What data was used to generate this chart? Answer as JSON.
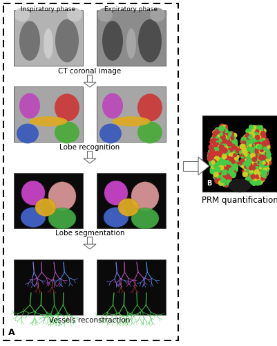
{
  "fig_width": 4.02,
  "fig_height": 5.0,
  "dpi": 100,
  "background_color": "#ffffff",
  "labels": {
    "insp": "Inspiratory phase",
    "exp": "Expiratory phase",
    "ct": "CT coronal image",
    "lobe_recog": "Lobe recognition",
    "lobe_seg": "Lobe segmentation",
    "vessels": "Vessels reconstraction",
    "prm": "PRM quantification",
    "A": "A",
    "B": "B"
  }
}
